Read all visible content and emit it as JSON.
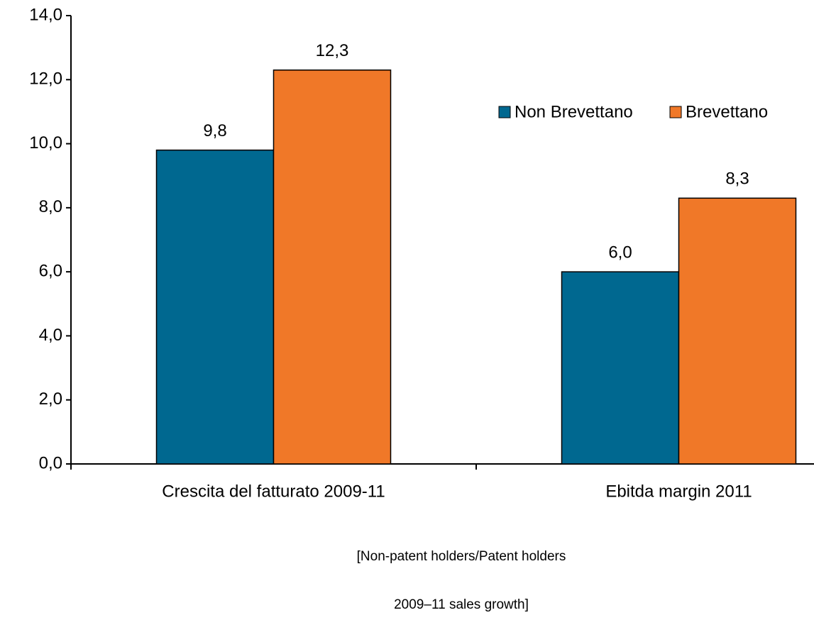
{
  "chart_data": {
    "type": "bar",
    "categories": [
      "Crescita del fatturato 2009-11",
      "Ebitda margin 2011"
    ],
    "series": [
      {
        "name": "Non Brevettano",
        "color": "#006890",
        "values": [
          9.8,
          6.0
        ],
        "value_labels": [
          "9,8",
          "6,0"
        ]
      },
      {
        "name": "Brevettano",
        "color": "#f07828",
        "values": [
          12.3,
          8.3
        ],
        "value_labels": [
          "12,3",
          "8,3"
        ]
      }
    ],
    "ylim": [
      0,
      14
    ],
    "yticks": [
      {
        "value": 0,
        "label": "0,0"
      },
      {
        "value": 2,
        "label": "2,0"
      },
      {
        "value": 4,
        "label": "4,0"
      },
      {
        "value": 6,
        "label": "6,0"
      },
      {
        "value": 8,
        "label": "8,0"
      },
      {
        "value": 10,
        "label": "10,0"
      },
      {
        "value": 12,
        "label": "12,0"
      },
      {
        "value": 14,
        "label": "14,0"
      }
    ],
    "grid": false,
    "legend": "upper right",
    "annotations": [
      "[Non-patent holders/Patent holders",
      "2009–11 sales growth]"
    ]
  }
}
